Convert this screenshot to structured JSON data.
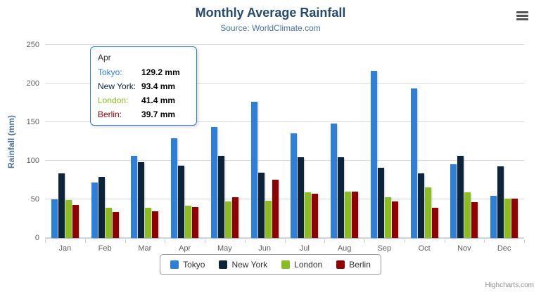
{
  "chart_data": {
    "type": "bar",
    "title": "Monthly Average Rainfall",
    "subtitle": "Source: WorldClimate.com",
    "xlabel": "",
    "ylabel": "Rainfall (mm)",
    "ylim": [
      0,
      250
    ],
    "yticks": [
      0,
      50,
      100,
      150,
      200,
      250
    ],
    "grid": true,
    "legend_position": "bottom",
    "categories": [
      "Jan",
      "Feb",
      "Mar",
      "Apr",
      "May",
      "Jun",
      "Jul",
      "Aug",
      "Sep",
      "Oct",
      "Nov",
      "Dec"
    ],
    "series": [
      {
        "name": "Tokyo",
        "color": "#2f7ed8",
        "values": [
          49.9,
          71.5,
          106.4,
          129.2,
          144.0,
          176.0,
          135.6,
          148.5,
          216.4,
          194.1,
          95.6,
          54.4
        ]
      },
      {
        "name": "New York",
        "color": "#0d233a",
        "values": [
          83.6,
          78.8,
          98.5,
          93.4,
          106.0,
          84.5,
          105.0,
          104.3,
          91.2,
          83.5,
          106.6,
          92.3
        ]
      },
      {
        "name": "London",
        "color": "#8bbc21",
        "values": [
          48.9,
          38.8,
          39.3,
          41.4,
          47.0,
          48.3,
          59.0,
          59.6,
          52.4,
          65.2,
          59.3,
          51.2
        ]
      },
      {
        "name": "Berlin",
        "color": "#910000",
        "values": [
          42.4,
          33.2,
          34.5,
          39.7,
          52.6,
          75.5,
          57.4,
          60.4,
          47.6,
          39.1,
          46.8,
          51.1
        ]
      }
    ]
  },
  "tooltip": {
    "category": "Apr",
    "rows": [
      {
        "name": "Tokyo",
        "value": "129.2 mm",
        "color": "#2f7ed8"
      },
      {
        "name": "New York",
        "value": "93.4 mm",
        "color": "#0d233a"
      },
      {
        "name": "London",
        "value": "41.4 mm",
        "color": "#8bbc21"
      },
      {
        "name": "Berlin",
        "value": "39.7 mm",
        "color": "#910000"
      }
    ]
  },
  "credits": {
    "label": "Highcharts.com"
  },
  "icons": {
    "context_menu": "hamburger-icon"
  },
  "colors": {
    "title": "#274b6d",
    "subtitle": "#4d759e",
    "axis_label": "#606060",
    "axis_line": "#C0D0E0",
    "gridline": "#d8d8d8",
    "tooltip_border": "#2f7ed8"
  }
}
